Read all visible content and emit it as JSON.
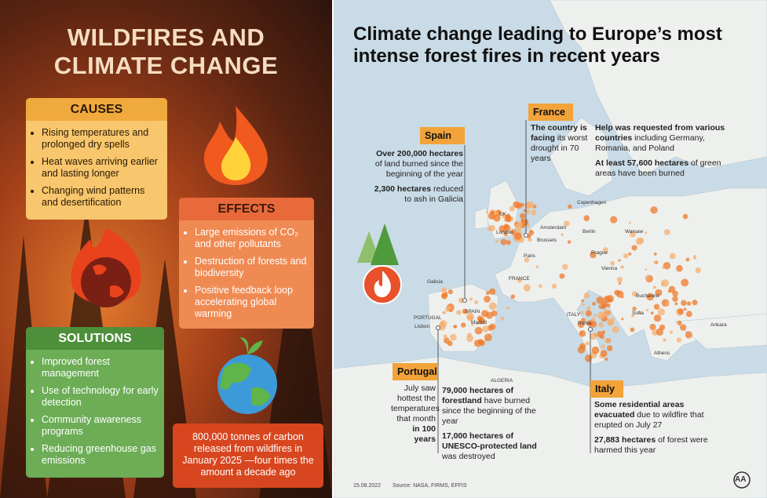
{
  "left": {
    "title": "WILDFIRES AND CLIMATE CHANGE",
    "causes": {
      "heading": "CAUSES",
      "items": [
        "Rising temperatures and prolonged dry spells",
        "Heat waves arriving earlier and lasting longer",
        "Changing wind patterns and desertification"
      ]
    },
    "effects": {
      "heading": "EFFECTS",
      "items": [
        "Large emissions of CO₂ and other pollutants",
        "Destruction of forests and biodiversity",
        "Positive feedback loop accelerating global warming"
      ]
    },
    "solutions": {
      "heading": "SOLUTIONS",
      "items": [
        "Improved forest management",
        "Use of technology for early detection",
        "Community awareness programs",
        "Reducing greenhouse gas emissions"
      ]
    },
    "note": "800,000 tonnes of carbon released from wildfires in January 2025 —four times the amount a decade ago"
  },
  "right": {
    "title": "Climate change leading to Europe’s most intense forest fires in recent years",
    "callouts": [
      {
        "label": "Spain",
        "paragraphs": [
          [
            {
              "text": "Over 200,000 hectares",
              "bold": true
            },
            {
              "text": " of land burned since the beginning of the year"
            }
          ],
          [
            {
              "text": "2,300 hectares",
              "bold": true
            },
            {
              "text": " reduced to ash in Galicia"
            }
          ]
        ]
      },
      {
        "label": "France",
        "paragraphs": [
          [
            {
              "text": "The country is facing",
              "bold": true
            },
            {
              "text": " its worst drought in 70 years"
            }
          ]
        ]
      },
      {
        "paragraphs": [
          [
            {
              "text": "Help was requested from various countries",
              "bold": true
            },
            {
              "text": " including Germany, Romania, and Poland"
            }
          ],
          [
            {
              "text": "At least 57,600 hectares",
              "bold": true
            },
            {
              "text": " of green areas have been burned"
            }
          ]
        ]
      },
      {
        "label": "Portugal",
        "paragraphs": [
          [
            {
              "text": "July saw hottest the temperatures that month "
            },
            {
              "text": "in 100 years",
              "bold": true
            }
          ]
        ]
      },
      {
        "paragraphs": [
          [
            {
              "text": "79,000 hectares of forestland",
              "bold": true
            },
            {
              "text": " have burned since the beginning of the year"
            }
          ],
          [
            {
              "text": "17,000 hectares of UNESCO-protected land",
              "bold": true
            },
            {
              "text": " was destroyed"
            }
          ]
        ]
      },
      {
        "label": "Italy",
        "paragraphs": [
          [
            {
              "text": "Some residential areas evacuated",
              "bold": true
            },
            {
              "text": " due to wildfire that erupted on July 27"
            }
          ],
          [
            {
              "text": "27,883 hectares",
              "bold": true
            },
            {
              "text": " of forest were harmed this year"
            }
          ]
        ]
      }
    ],
    "cities": [
      "UK",
      "London",
      "Amsterdam",
      "Brussels",
      "Paris",
      "FRANCE",
      "Copenhagen",
      "Berlin",
      "Warsaw",
      "Prague",
      "Vienna",
      "Bucharest",
      "Sofia",
      "Athens",
      "Ankara",
      "ITALY",
      "Rome",
      "SPAIN",
      "Madrid",
      "PORTUGAL",
      "Lisbon",
      "Galicia",
      "ALGERIA"
    ],
    "date": "15.08.2022",
    "source": "Source: NASA, FIRMS, EFFIS",
    "logo": "AA"
  }
}
